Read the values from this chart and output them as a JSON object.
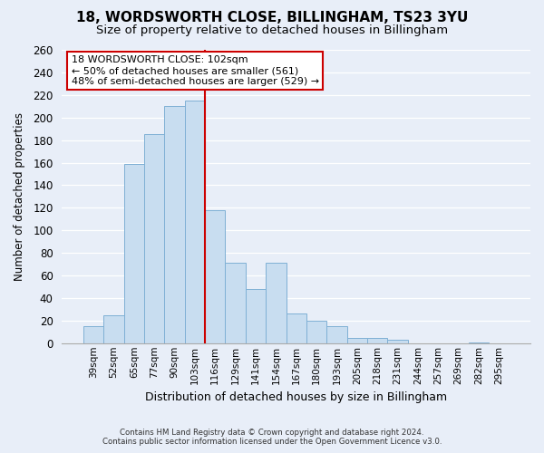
{
  "title": "18, WORDSWORTH CLOSE, BILLINGHAM, TS23 3YU",
  "subtitle": "Size of property relative to detached houses in Billingham",
  "xlabel": "Distribution of detached houses by size in Billingham",
  "ylabel": "Number of detached properties",
  "bar_labels": [
    "39sqm",
    "52sqm",
    "65sqm",
    "77sqm",
    "90sqm",
    "103sqm",
    "116sqm",
    "129sqm",
    "141sqm",
    "154sqm",
    "167sqm",
    "180sqm",
    "193sqm",
    "205sqm",
    "218sqm",
    "231sqm",
    "244sqm",
    "257sqm",
    "269sqm",
    "282sqm",
    "295sqm"
  ],
  "bar_values": [
    15,
    25,
    159,
    185,
    210,
    215,
    118,
    71,
    48,
    71,
    26,
    20,
    15,
    5,
    5,
    3,
    0,
    0,
    0,
    1,
    0
  ],
  "bar_color": "#c8ddf0",
  "bar_edge_color": "#7fb0d5",
  "highlight_index": 5,
  "highlight_line_color": "#cc0000",
  "ylim": [
    0,
    260
  ],
  "yticks": [
    0,
    20,
    40,
    60,
    80,
    100,
    120,
    140,
    160,
    180,
    200,
    220,
    240,
    260
  ],
  "annotation_title": "18 WORDSWORTH CLOSE: 102sqm",
  "annotation_line1": "← 50% of detached houses are smaller (561)",
  "annotation_line2": "48% of semi-detached houses are larger (529) →",
  "annotation_box_color": "#ffffff",
  "annotation_box_edge": "#cc0000",
  "footer_line1": "Contains HM Land Registry data © Crown copyright and database right 2024.",
  "footer_line2": "Contains public sector information licensed under the Open Government Licence v3.0.",
  "background_color": "#e8eef8",
  "grid_color": "#ffffff",
  "title_fontsize": 11,
  "subtitle_fontsize": 9.5
}
